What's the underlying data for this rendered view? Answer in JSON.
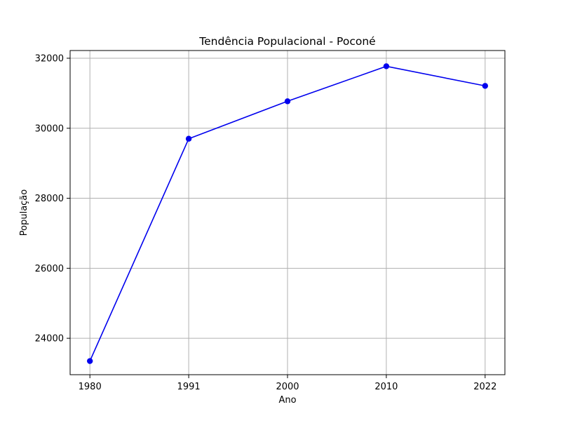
{
  "chart_data": {
    "type": "line",
    "title": "Tendência Populacional - Poconé",
    "xlabel": "Ano",
    "ylabel": "População",
    "categories": [
      "1980",
      "1991",
      "2000",
      "2010",
      "2022"
    ],
    "series": [
      {
        "values": [
          23350,
          29700,
          30770,
          31770,
          31210
        ]
      }
    ],
    "yticks": [
      24000,
      26000,
      28000,
      30000,
      32000
    ],
    "ylim": [
      22960,
      32220
    ],
    "grid": true,
    "legend": "none",
    "colors": {
      "line": "#0000ee",
      "marker": "#0000ee",
      "grid": "#b0b0b0",
      "axis": "#000000"
    }
  }
}
